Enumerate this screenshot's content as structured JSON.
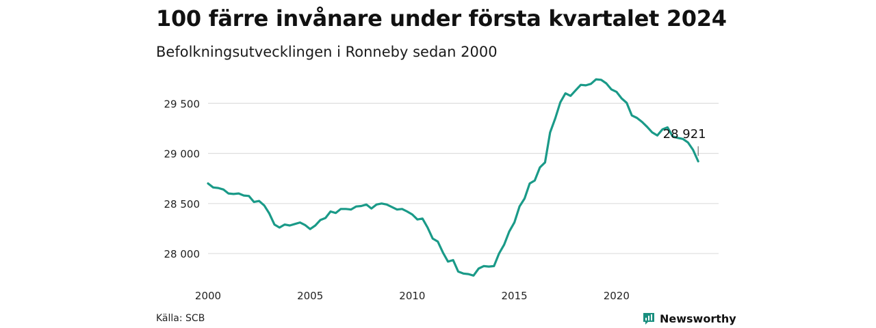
{
  "title": "100 färre invånare under första kvartalet 2024",
  "subtitle": "Befolkningsutvecklingen i Ronneby sedan 2000",
  "source": "Källa: SCB",
  "brand": {
    "name": "Newsworthy",
    "icon": "newsworthy-logo-icon",
    "color": "#1a8f7f"
  },
  "chart_data": {
    "type": "line",
    "line_color": "#1a9a88",
    "grid": true,
    "xlim": [
      2000,
      2025
    ],
    "ylim": [
      27700,
      29850
    ],
    "x_ticks": [
      2000,
      2005,
      2010,
      2015,
      2020
    ],
    "x_tick_labels": [
      "2000",
      "2005",
      "2010",
      "2015",
      "2020"
    ],
    "y_ticks": [
      28000,
      28500,
      29000,
      29500
    ],
    "y_tick_labels": [
      "28 000",
      "28 500",
      "29 000",
      "29 500"
    ],
    "annotation": {
      "text": "28 921",
      "x": 2024.0,
      "y": 28921
    },
    "series": [
      {
        "x": [
          2000.0,
          2000.25,
          2000.5,
          2000.75,
          2001.0,
          2001.25,
          2001.5,
          2001.75,
          2002.0,
          2002.25,
          2002.5,
          2002.75,
          2003.0,
          2003.25,
          2003.5,
          2003.75,
          2004.0,
          2004.25,
          2004.5,
          2004.75,
          2005.0,
          2005.25,
          2005.5,
          2005.75,
          2006.0,
          2006.25,
          2006.5,
          2006.75,
          2007.0,
          2007.25,
          2007.5,
          2007.75,
          2008.0,
          2008.25,
          2008.5,
          2008.75,
          2009.0,
          2009.25,
          2009.5,
          2009.75,
          2010.0,
          2010.25,
          2010.5,
          2010.75,
          2011.0,
          2011.25,
          2011.5,
          2011.75,
          2012.0,
          2012.25,
          2012.5,
          2012.75,
          2013.0,
          2013.25,
          2013.5,
          2013.75,
          2014.0,
          2014.25,
          2014.5,
          2014.75,
          2015.0,
          2015.25,
          2015.5,
          2015.75,
          2016.0,
          2016.25,
          2016.5,
          2016.75,
          2017.0,
          2017.25,
          2017.5,
          2017.75,
          2018.0,
          2018.25,
          2018.5,
          2018.75,
          2019.0,
          2019.25,
          2019.5,
          2019.75,
          2020.0,
          2020.25,
          2020.5,
          2020.75,
          2021.0,
          2021.25,
          2021.5,
          2021.75,
          2022.0,
          2022.25,
          2022.5,
          2022.75,
          2023.0,
          2023.25,
          2023.5,
          2023.75,
          2024.0
        ],
        "y": [
          28700,
          28660,
          28655,
          28640,
          28600,
          28595,
          28600,
          28580,
          28575,
          28515,
          28525,
          28480,
          28400,
          28290,
          28260,
          28290,
          28280,
          28295,
          28310,
          28285,
          28245,
          28280,
          28335,
          28355,
          28420,
          28405,
          28445,
          28445,
          28440,
          28470,
          28475,
          28490,
          28450,
          28490,
          28500,
          28490,
          28465,
          28440,
          28445,
          28420,
          28390,
          28340,
          28350,
          28260,
          28150,
          28120,
          28010,
          27920,
          27935,
          27820,
          27800,
          27795,
          27780,
          27850,
          27875,
          27870,
          27875,
          28000,
          28090,
          28220,
          28310,
          28470,
          28550,
          28700,
          28730,
          28860,
          28910,
          29210,
          29350,
          29510,
          29600,
          29575,
          29630,
          29685,
          29680,
          29695,
          29740,
          29735,
          29700,
          29640,
          29615,
          29550,
          29505,
          29380,
          29355,
          29315,
          29265,
          29210,
          29180,
          29240,
          29260,
          29170,
          29155,
          29145,
          29110,
          29035,
          28921
        ]
      }
    ]
  }
}
